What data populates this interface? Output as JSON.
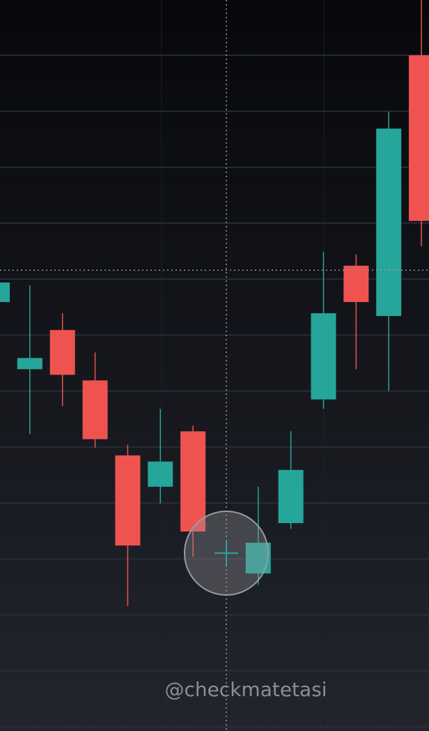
{
  "chart_data": {
    "type": "candlestick",
    "watermark": "@checkmatetasi",
    "categories": [
      null,
      null,
      null,
      null,
      null,
      null,
      null,
      null,
      null,
      null,
      null,
      null,
      null,
      null
    ],
    "open": [
      7.59,
      6.39,
      7.09,
      6.19,
      4.85,
      4.29,
      5.28,
      null,
      2.74,
      3.64,
      5.85,
      8.24,
      7.34,
      12.0
    ],
    "high": [
      7.94,
      7.89,
      7.39,
      6.69,
      5.04,
      5.68,
      5.38,
      null,
      4.29,
      5.28,
      8.49,
      8.44,
      10.99,
      13.0
    ],
    "low": [
      7.59,
      5.23,
      5.73,
      4.99,
      2.16,
      3.99,
      3.04,
      null,
      2.54,
      3.54,
      5.68,
      6.39,
      6.0,
      8.59
    ],
    "close": [
      7.94,
      6.59,
      6.29,
      5.14,
      3.24,
      4.74,
      3.49,
      null,
      3.29,
      4.59,
      7.39,
      7.59,
      10.69,
      9.04
    ],
    "up_color": "#26a69a",
    "down_color": "#ef5350",
    "ylim": [
      0,
      13
    ],
    "yticks": [
      0,
      1,
      2,
      3,
      4,
      5,
      6,
      7,
      8,
      9,
      10,
      11,
      12,
      13
    ],
    "grid": true,
    "crosshair_y": 8.16
  }
}
